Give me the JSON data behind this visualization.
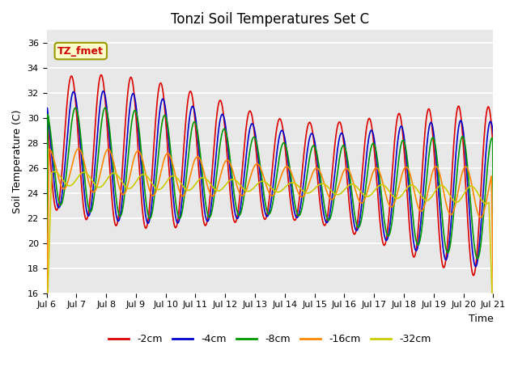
{
  "title": "Tonzi Soil Temperatures Set C",
  "xlabel": "Time",
  "ylabel": "Soil Temperature (C)",
  "ylim": [
    16,
    37
  ],
  "yticks": [
    16,
    18,
    20,
    22,
    24,
    26,
    28,
    30,
    32,
    34,
    36
  ],
  "xtick_labels": [
    "Jul 6",
    "Jul 7",
    "Jul 8",
    "Jul 9",
    "Jul 10",
    "Jul 11",
    "Jul 12",
    "Jul 13",
    "Jul 14",
    "Jul 15",
    "Jul 16",
    "Jul 17",
    "Jul 18",
    "Jul 19",
    "Jul 20",
    "Jul 21"
  ],
  "colors": [
    "#dd0000",
    "#0000cc",
    "#009900",
    "#ff8800",
    "#cccc00"
  ],
  "names": [
    "-2cm",
    "-4cm",
    "-8cm",
    "-16cm",
    "-32cm"
  ],
  "bg_color": "#e8e8e8",
  "grid_color": "#ffffff",
  "ann_text": "TZ_fmet",
  "ann_fg": "#cc0000",
  "ann_bg": "#ffffcc",
  "ann_border": "#999900"
}
